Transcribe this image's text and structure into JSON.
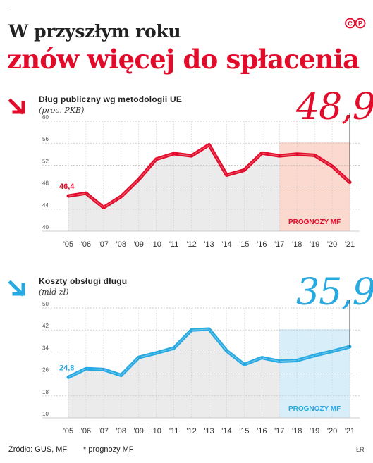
{
  "header": {
    "title_line1": "W przyszłym roku",
    "title_line2": "znów więcej do spłacenia",
    "logo_text": "©P"
  },
  "colors": {
    "red": "#e30b2a",
    "blue": "#27a9e1",
    "red_fill": "#fbd9ce",
    "blue_fill": "#d8effa",
    "gray_fill": "#ebebeb"
  },
  "chart_data": [
    {
      "type": "line",
      "title": "Dług publiczny wg metodologii UE",
      "subtitle": "(proc. PKB)",
      "highlight_value": "48,9",
      "start_label": "46,4",
      "forecast_label": "PROGNOZY MF",
      "categories": [
        "'05",
        "'06",
        "'07",
        "'08",
        "'09",
        "'10",
        "'11",
        "'12",
        "'13",
        "'14",
        "'15",
        "'16",
        "'17",
        "'18",
        "'19",
        "'20",
        "'21"
      ],
      "values": [
        46.4,
        46.9,
        44.3,
        46.3,
        49.4,
        53.1,
        54.1,
        53.7,
        55.7,
        50.2,
        51.1,
        54.2,
        53.7,
        54.0,
        53.8,
        51.8,
        48.9
      ],
      "yticks": [
        "60",
        "56",
        "52",
        "48",
        "44",
        "40"
      ],
      "ylim": [
        40,
        60
      ],
      "forecast_from": "'17",
      "icon": "arrow-down-right-red"
    },
    {
      "type": "line",
      "title": "Koszty obsługi długu",
      "subtitle": "(mld zł)",
      "highlight_value": "35,9",
      "start_label": "24,8",
      "forecast_label": "PROGNOZY MF",
      "categories": [
        "'05",
        "'06",
        "'07",
        "'08",
        "'09",
        "'10",
        "'11",
        "'12",
        "'13",
        "'14",
        "'15",
        "'16",
        "'17",
        "'18",
        "'19",
        "'20",
        "'21"
      ],
      "values": [
        24.8,
        27.9,
        27.6,
        25.5,
        32.0,
        33.6,
        35.4,
        42.0,
        42.3,
        34.4,
        29.4,
        31.9,
        30.6,
        30.9,
        32.7,
        34.2,
        35.9
      ],
      "yticks": [
        "50",
        "42",
        "34",
        "26",
        "18",
        "10"
      ],
      "ylim": [
        10,
        50
      ],
      "forecast_from": "'17",
      "icon": "arrow-down-right-blue"
    }
  ],
  "footer": {
    "source": "Źródło: GUS, MF",
    "note": "* prognozy MF",
    "credit": "ŁR"
  }
}
